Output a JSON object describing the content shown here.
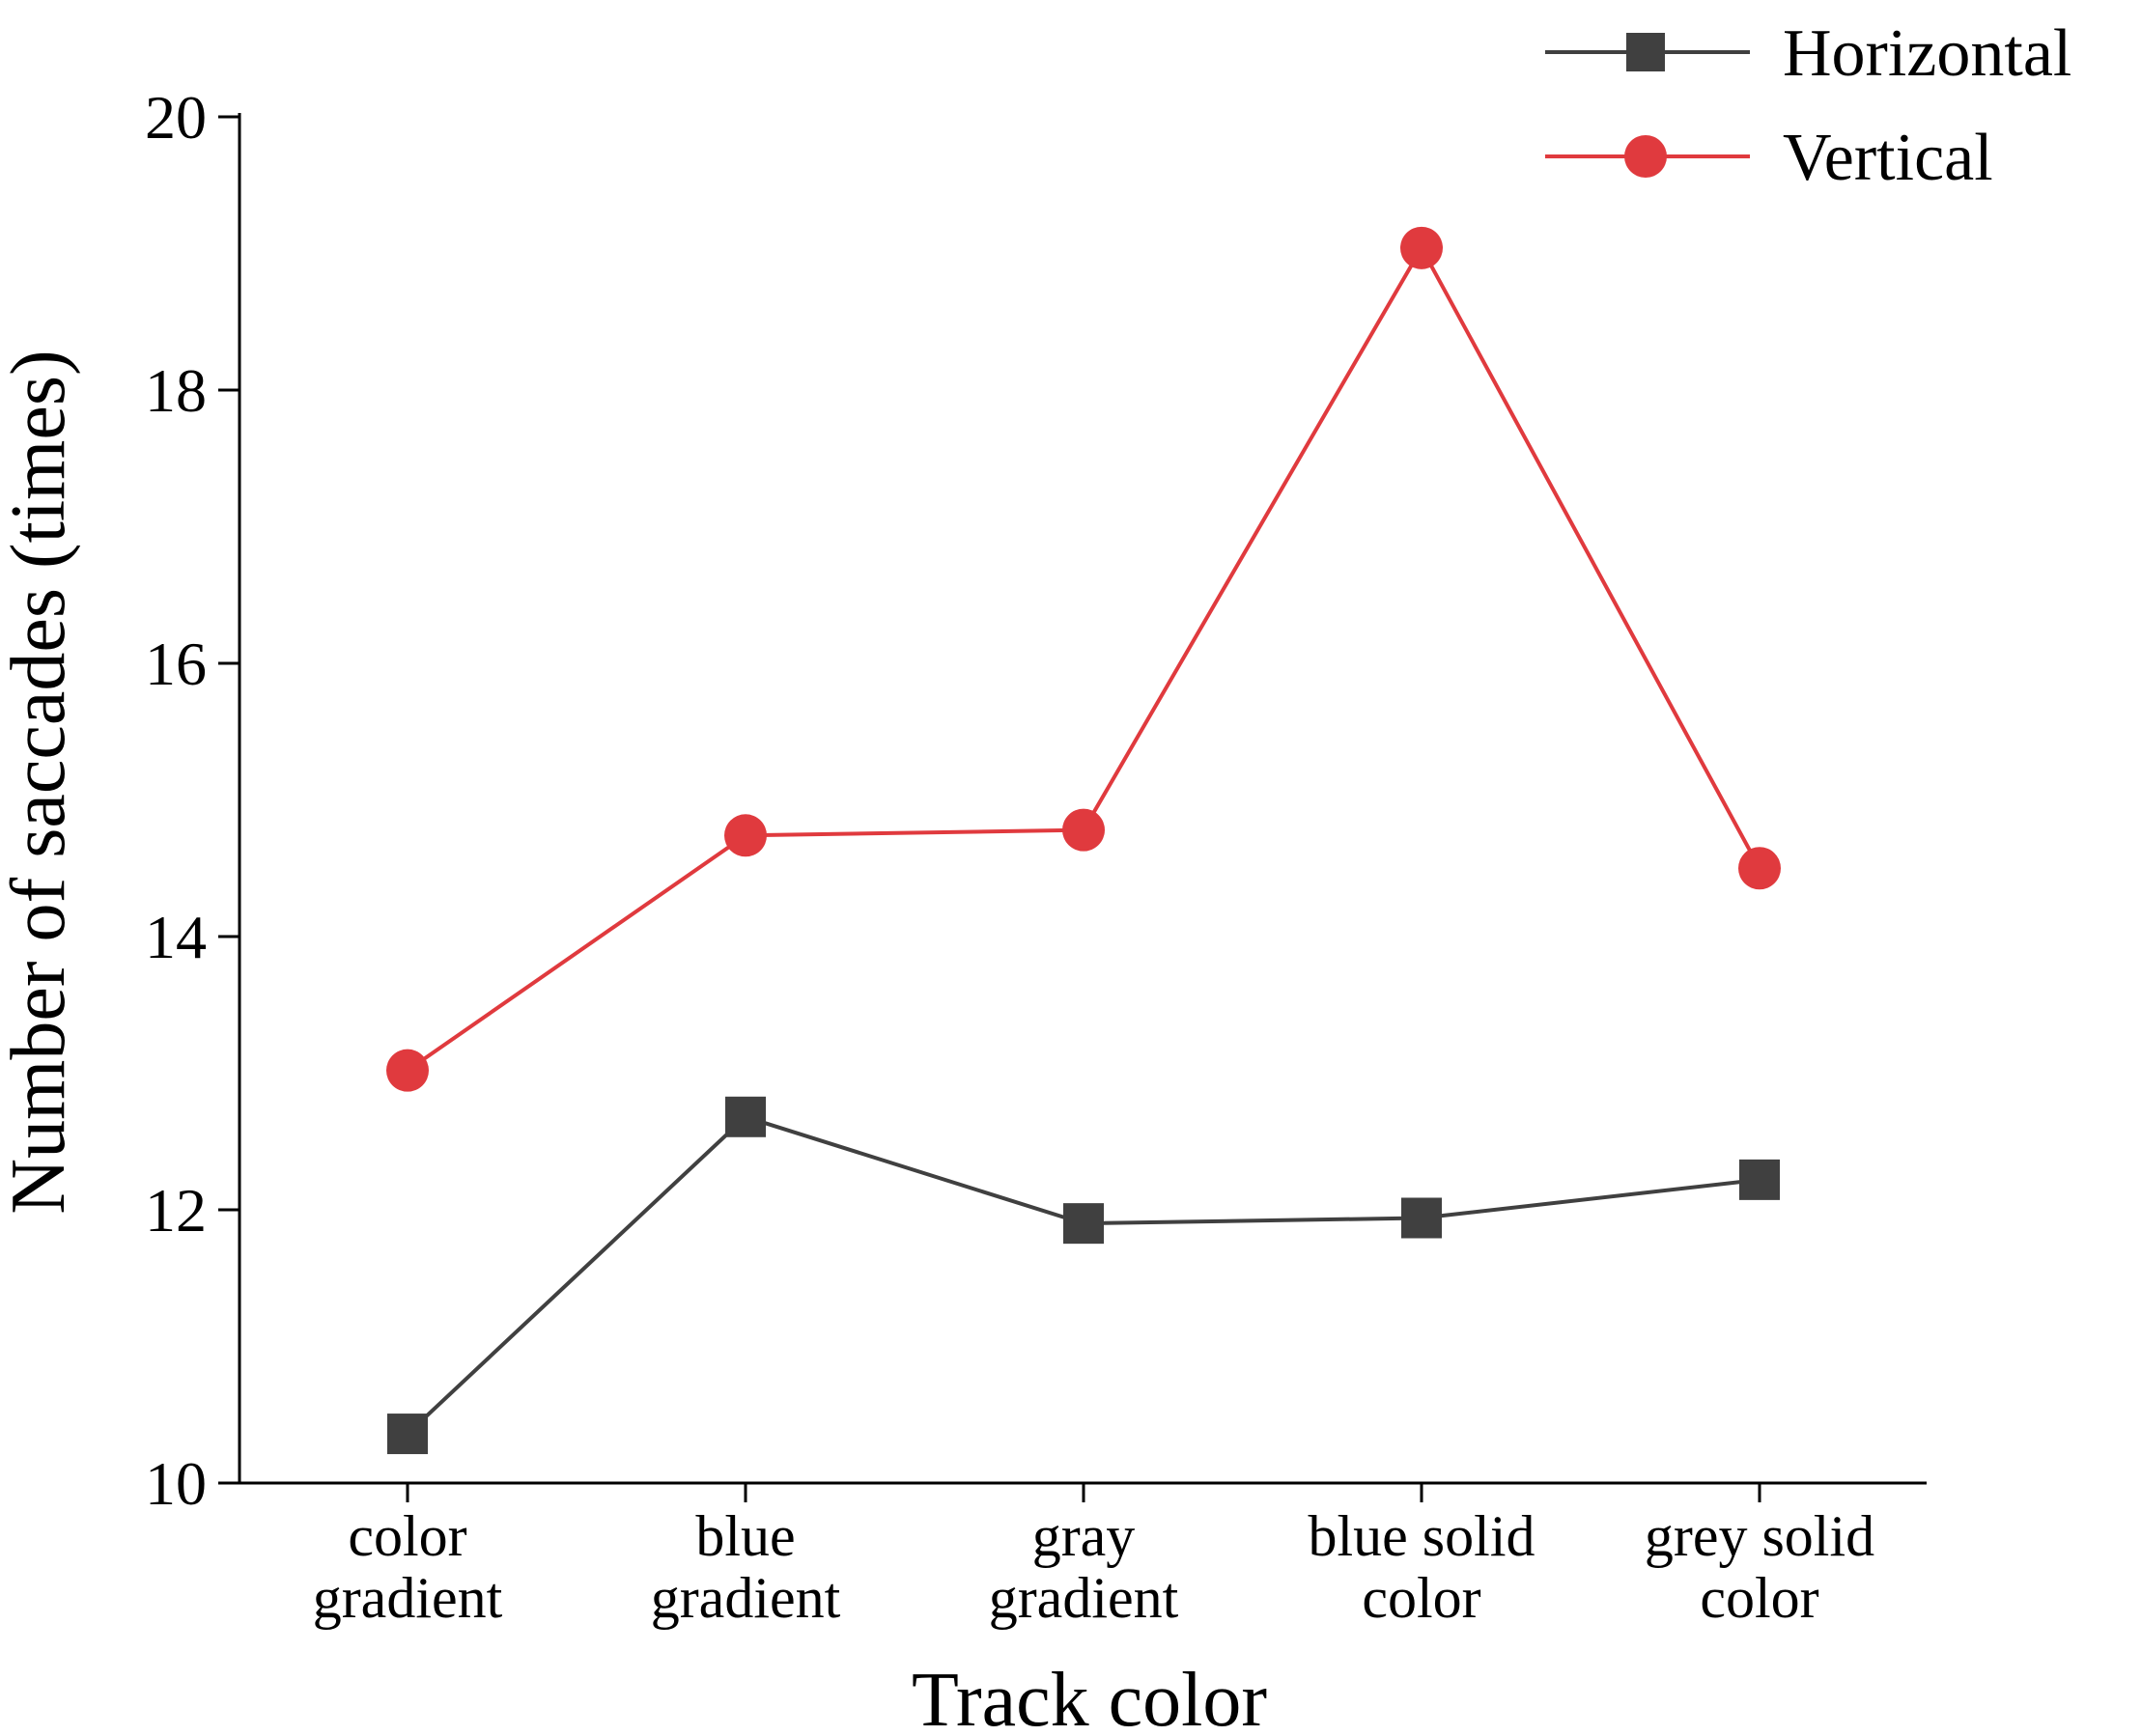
{
  "chart_data": {
    "type": "line",
    "xlabel": "Track color",
    "ylabel": "Number of saccades (times)",
    "categories": [
      [
        "color",
        "gradient"
      ],
      [
        "blue",
        "gradient"
      ],
      [
        "gray",
        "gradient"
      ],
      [
        "blue solid",
        "color"
      ],
      [
        "grey solid",
        "color"
      ]
    ],
    "ylim": [
      10,
      20
    ],
    "yticks": [
      "10",
      "12",
      "14",
      "16",
      "18",
      "20"
    ],
    "grid": false,
    "legend_position": "top-right",
    "series": [
      {
        "name": "Horizontal",
        "values": [
          10.36,
          12.68,
          11.9,
          11.94,
          12.22
        ],
        "color": "#404040",
        "marker": "square"
      },
      {
        "name": "Vertical",
        "values": [
          13.02,
          14.74,
          14.78,
          19.04,
          14.5
        ],
        "color": "#e03a3e",
        "marker": "circle"
      }
    ]
  }
}
